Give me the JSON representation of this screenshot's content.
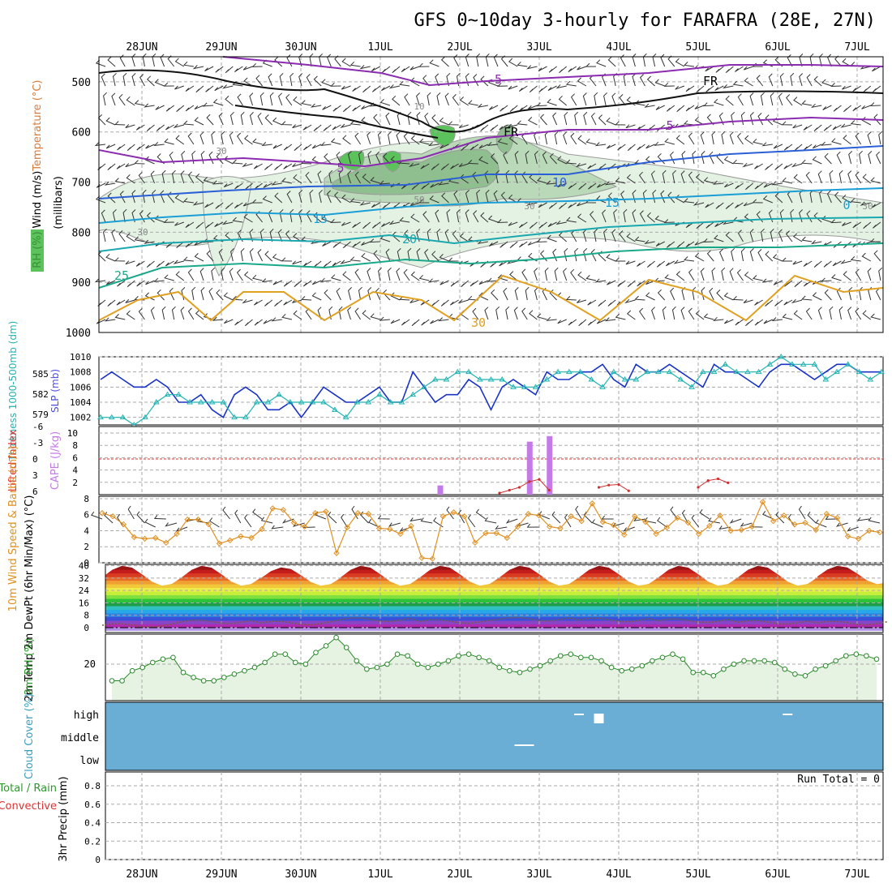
{
  "title": "GFS 0~10day 3-hourly for FARAFRA (28E, 27N)",
  "days": [
    "28JUN",
    "29JUN",
    "30JUN",
    "1JUL",
    "2JUL",
    "3JUL",
    "4JUL",
    "5JUL",
    "6JUL",
    "7JUL"
  ],
  "chart_data": [
    {
      "id": "upper-air",
      "type": "contour",
      "ylabel_parts": [
        {
          "text": "Wind (m/s)",
          "color": "#000000"
        },
        {
          "text": "Temperature (°C)",
          "color": "#d97a3a"
        },
        {
          "text": "RH (%)",
          "color": "#3a8f3a"
        },
        {
          "text": "(millibars)",
          "color": "#000000"
        }
      ],
      "pressure_levels": [
        "500",
        "600",
        "700",
        "800",
        "900",
        "1000"
      ],
      "labels": [
        "-5",
        "5",
        "5",
        "10",
        "15",
        "15",
        "20",
        "25",
        "30",
        "FR",
        "FR",
        "0",
        "30",
        "50",
        "30",
        "30",
        "10",
        "30"
      ],
      "isotherm_colors": {
        "-5": "#8a2bb0",
        "5": "#8a2bb0",
        "10": "#2a5fd6",
        "15": "#1a9ed6",
        "20": "#1aa8b0",
        "25": "#1aa88a",
        "30": "#e0a020",
        "35": "#e07020",
        "40": "#d0208a"
      }
    },
    {
      "id": "thickness-slp",
      "type": "line",
      "ylabel_left": "Thickness 1000-500mb (dm)",
      "ylabel_right": "SLP (mb)",
      "yticks_left": [
        "585",
        "582",
        "579"
      ],
      "yticks_right": [
        "1010",
        "1008",
        "1006",
        "1004",
        "1002"
      ],
      "series": [
        {
          "values": [
            1007,
            1008,
            1007,
            1006,
            1006,
            1007,
            1006,
            1004,
            1004,
            1005,
            1003,
            1002,
            1005,
            1006,
            1005,
            1003,
            1003,
            1004,
            1002,
            1004,
            1006,
            1005,
            1004,
            1004,
            1005,
            1006,
            1004,
            1004,
            1008,
            1006,
            1004,
            1005,
            1005,
            1007,
            1006,
            1003,
            1006,
            1007,
            1006,
            1005,
            1008,
            1007,
            1007,
            1008,
            1008,
            1009,
            1007,
            1006,
            1009,
            1008,
            1008,
            1009,
            1008,
            1007,
            1006,
            1009,
            1008,
            1008,
            1007,
            1006,
            1008,
            1009,
            1009,
            1008,
            1007,
            1008,
            1009,
            1009,
            1008,
            1008,
            1008
          ]
        },
        {
          "values": [
            1002,
            1002,
            1002,
            1001,
            1002,
            1004,
            1005,
            1005,
            1004,
            1004,
            1004,
            1004,
            1002,
            1002,
            1004,
            1004,
            1005,
            1004,
            1004,
            1004,
            1004,
            1003,
            1002,
            1004,
            1004,
            1005,
            1004,
            1004,
            1005,
            1006,
            1007,
            1007,
            1008,
            1008,
            1007,
            1007,
            1007,
            1006,
            1006,
            1006,
            1007,
            1008,
            1008,
            1008,
            1007,
            1006,
            1008,
            1007,
            1007,
            1008,
            1008,
            1008,
            1007,
            1006,
            1008,
            1008,
            1009,
            1008,
            1008,
            1008,
            1009,
            1010,
            1009,
            1009,
            1009,
            1007,
            1008,
            1009,
            1008,
            1007,
            1008
          ]
        }
      ]
    },
    {
      "id": "cape-li",
      "type": "bar",
      "ylabel_left": "Lifted Index",
      "ylabel_right": "CAPE (J/kg)",
      "yticks_left": [
        "-6",
        "-3",
        "0",
        "3",
        "6"
      ],
      "yticks_right": [
        "10",
        "8",
        "6",
        "4",
        "2"
      ],
      "cape_bars": [
        {
          "t": 34,
          "v": 1.5
        },
        {
          "t": 43,
          "v": 8.6
        },
        {
          "t": 45,
          "v": 9.5
        }
      ],
      "li_segments": [
        {
          "t": [
            40,
            41,
            42,
            43,
            44,
            45
          ],
          "v": [
            6,
            5.5,
            5,
            4,
            3.6,
            5.5
          ]
        },
        {
          "t": [
            50,
            51,
            52,
            53
          ],
          "v": [
            5,
            4.6,
            4.5,
            5.6
          ]
        },
        {
          "t": [
            60,
            61,
            62,
            63
          ],
          "v": [
            5,
            3.8,
            3.5,
            4.2
          ]
        }
      ]
    },
    {
      "id": "wind10m",
      "type": "line",
      "ylabel": "10m Wind Speed & Barbs (m/s)",
      "yticks": [
        "8",
        "6",
        "4",
        "2",
        "0"
      ],
      "values": [
        6.2,
        5.8,
        4.8,
        3.2,
        3.0,
        3.1,
        2.5,
        3.6,
        5.4,
        5.4,
        4.8,
        2.4,
        2.8,
        3.3,
        3.1,
        4.2,
        6.8,
        6.6,
        5.0,
        4.5,
        6.2,
        6.4,
        1.2,
        4.4,
        6.2,
        6.1,
        4.3,
        4.2,
        3.6,
        4.6,
        0.6,
        0.5,
        5.8,
        6.3,
        5.8,
        2.5,
        3.7,
        3.7,
        3.1,
        4.5,
        6.1,
        5.9,
        4.5,
        4.3,
        5.8,
        5.2,
        7.4,
        5.1,
        4.7,
        3.5,
        5.8,
        5.1,
        3.6,
        4.4,
        5.6,
        5.0,
        3.6,
        4.6,
        5.9,
        4.0,
        4.1,
        4.5,
        7.6,
        5.2,
        5.9,
        4.8,
        5.0,
        4.1,
        6.1,
        5.6,
        3.3,
        3.0,
        4.0,
        3.8
      ]
    },
    {
      "id": "temp2m",
      "type": "area",
      "ylabel": "2m Temp 2m DewPt (6hr Min/Max) (°C)",
      "yticks": [
        "40",
        "32",
        "24",
        "16",
        "8",
        "0"
      ],
      "tmax": [
        40,
        40,
        39,
        40,
        40,
        40,
        40,
        40,
        40,
        40
      ],
      "tmin": [
        27,
        27,
        27,
        27,
        27,
        27,
        27,
        27,
        27,
        28
      ],
      "dewpt": [
        1.5,
        3.8,
        3.0,
        5.2,
        4.0,
        5.5,
        5.0,
        4.5,
        3.5,
        3.0
      ],
      "bands": [
        "#b22ab0",
        "#8a45c7",
        "#3a50d8",
        "#2e7fe0",
        "#27a8e8",
        "#2fc0c0",
        "#1f9e4a",
        "#2cc23a",
        "#7fe03e",
        "#c6ee3a",
        "#eeee4a",
        "#f0c83a",
        "#f0a032",
        "#e86a2a",
        "#d93a22",
        "#c41b1b",
        "#991414"
      ]
    },
    {
      "id": "rh2m",
      "type": "area",
      "ylabel": "2m RH (%)",
      "yticks": [
        "20"
      ],
      "values": [
        10,
        10,
        16,
        18,
        21,
        23,
        24,
        15,
        12,
        10,
        10,
        12,
        14,
        16,
        18,
        21,
        26,
        26,
        21,
        20,
        27,
        31,
        36,
        30,
        22,
        17,
        18,
        20,
        26,
        25,
        20,
        18,
        20,
        22,
        25,
        26,
        24,
        22,
        18,
        16,
        15,
        17,
        19,
        22,
        25,
        26,
        24,
        24,
        22,
        18,
        16,
        17,
        19,
        22,
        24,
        26,
        23,
        15,
        15,
        13,
        17,
        20,
        22,
        22,
        22,
        21,
        17,
        14,
        13,
        17,
        19,
        22,
        25,
        26,
        25,
        23
      ]
    },
    {
      "id": "cloud",
      "type": "heatmap",
      "ylabel": "Cloud Cover (%)",
      "levels": [
        "high",
        "middle",
        "low"
      ],
      "background": "#6aaed6",
      "patches": [
        {
          "level": "high",
          "t": 48,
          "w": 1
        },
        {
          "level": "high",
          "t": 50,
          "w": 1
        },
        {
          "level": "middle",
          "t": 42,
          "w": 2
        },
        {
          "level": "high",
          "t": 69,
          "w": 1
        }
      ]
    },
    {
      "id": "precip",
      "type": "bar",
      "ylabel_left": "Total / Rain",
      "ylabel_right": "Convective",
      "ylabel": "3hr Precip (mm)",
      "yticks": [
        "0.8",
        "0.6",
        "0.4",
        "0.2",
        "0"
      ],
      "run_total": "Run Total = 0",
      "values": []
    }
  ]
}
